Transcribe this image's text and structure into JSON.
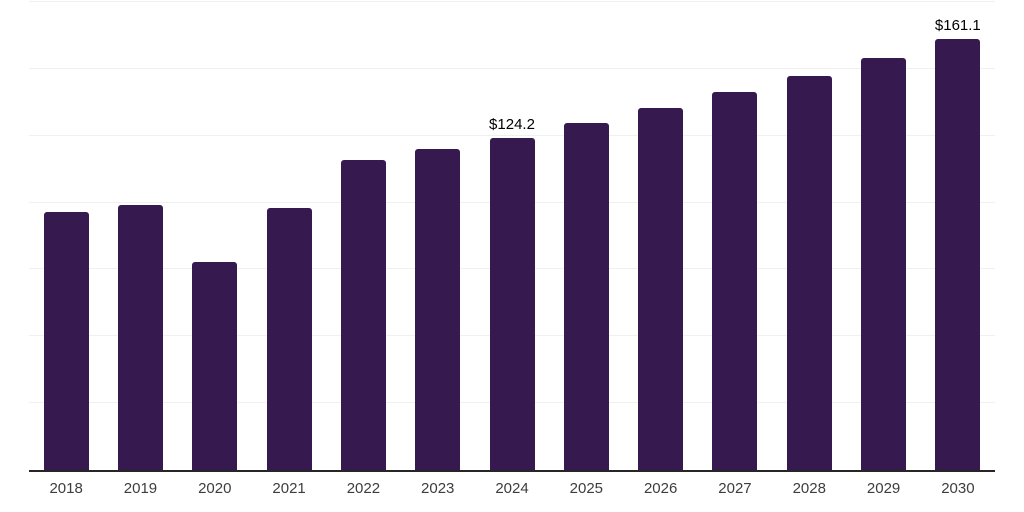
{
  "chart_data": {
    "type": "bar",
    "title": "",
    "xlabel": "",
    "ylabel": "",
    "categories": [
      "2018",
      "2019",
      "2020",
      "2021",
      "2022",
      "2023",
      "2024",
      "2025",
      "2026",
      "2027",
      "2028",
      "2029",
      "2030"
    ],
    "values": [
      96.4,
      99.0,
      77.6,
      97.8,
      115.8,
      120.2,
      124.2,
      129.7,
      135.4,
      141.3,
      147.4,
      154.2,
      161.1
    ],
    "point_labels": [
      {
        "category": "2024",
        "text": "$124.2"
      },
      {
        "category": "2030",
        "text": "$161.1"
      }
    ],
    "ylim": [
      0,
      175
    ],
    "grid_step": 25,
    "grid": "horizontal",
    "legend": "none",
    "colors": {
      "bar": "#36194e",
      "gridline": "#f0f0f0",
      "axis_line": "#262626",
      "tick_label": "#3d3d3d",
      "point_label": "#000000"
    }
  }
}
